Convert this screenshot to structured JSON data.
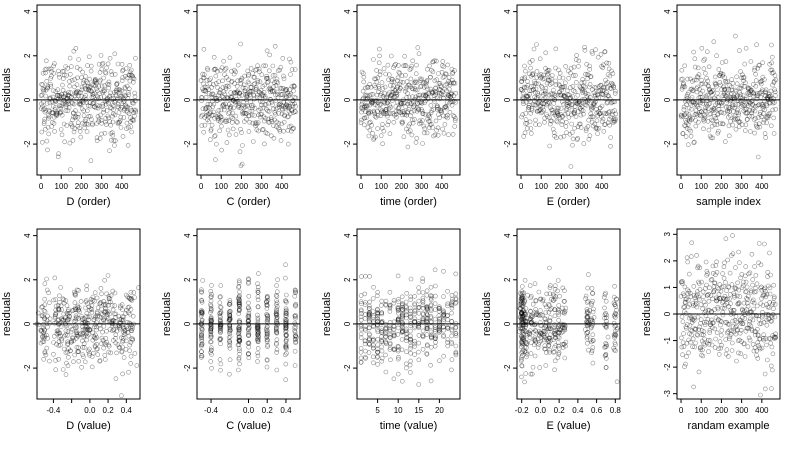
{
  "figure": {
    "layout": "2 rows x 5 columns of residual scatter plots"
  },
  "chart_data": [
    {
      "id": "d_order",
      "type": "scatter",
      "xlabel": "D (order)",
      "ylabel": "residuals",
      "xlim": [
        -20,
        490
      ],
      "ylim": [
        -3.4,
        4.3
      ],
      "xticks": [
        0,
        100,
        200,
        300,
        400
      ],
      "xtick_labels": [
        "0",
        "100",
        "200",
        "300",
        "400"
      ],
      "yticks": [
        -2,
        0,
        2,
        4
      ],
      "ytick_labels": [
        "-2",
        "0",
        "2",
        "4"
      ],
      "zero_line": 0,
      "n_points": 470,
      "pattern": "order"
    },
    {
      "id": "c_order",
      "type": "scatter",
      "xlabel": "C (order)",
      "ylabel": "residuals",
      "xlim": [
        -20,
        490
      ],
      "ylim": [
        -3.4,
        4.3
      ],
      "xticks": [
        0,
        100,
        200,
        300,
        400
      ],
      "xtick_labels": [
        "0",
        "100",
        "200",
        "300",
        "400"
      ],
      "yticks": [
        -2,
        0,
        2,
        4
      ],
      "ytick_labels": [
        "-2",
        "0",
        "2",
        "4"
      ],
      "zero_line": 0,
      "n_points": 470,
      "pattern": "order"
    },
    {
      "id": "time_order",
      "type": "scatter",
      "xlabel": "time (order)",
      "ylabel": "residuals",
      "xlim": [
        -20,
        490
      ],
      "ylim": [
        -3.4,
        4.3
      ],
      "xticks": [
        0,
        100,
        200,
        300,
        400
      ],
      "xtick_labels": [
        "0",
        "100",
        "200",
        "300",
        "400"
      ],
      "yticks": [
        -2,
        0,
        2,
        4
      ],
      "ytick_labels": [
        "-2",
        "0",
        "2",
        "4"
      ],
      "zero_line": 0,
      "n_points": 470,
      "pattern": "order"
    },
    {
      "id": "e_order",
      "type": "scatter",
      "xlabel": "E (order)",
      "ylabel": "residuals",
      "xlim": [
        -20,
        490
      ],
      "ylim": [
        -3.4,
        4.3
      ],
      "xticks": [
        0,
        100,
        200,
        300,
        400
      ],
      "xtick_labels": [
        "0",
        "100",
        "200",
        "300",
        "400"
      ],
      "yticks": [
        -2,
        0,
        2,
        4
      ],
      "ytick_labels": [
        "-2",
        "0",
        "2",
        "4"
      ],
      "zero_line": 0,
      "n_points": 470,
      "pattern": "order"
    },
    {
      "id": "sample_index",
      "type": "scatter",
      "xlabel": "sample index",
      "ylabel": "residuals",
      "xlim": [
        -20,
        490
      ],
      "ylim": [
        -3.4,
        4.3
      ],
      "xticks": [
        0,
        100,
        200,
        300,
        400
      ],
      "xtick_labels": [
        "0",
        "100",
        "200",
        "300",
        "400"
      ],
      "yticks": [
        -2,
        0,
        2,
        4
      ],
      "ytick_labels": [
        "-2",
        "0",
        "2",
        "4"
      ],
      "zero_line": 0,
      "n_points": 470,
      "pattern": "order"
    },
    {
      "id": "d_value",
      "type": "scatter",
      "xlabel": "D (value)",
      "ylabel": "residuals",
      "xlim": [
        -0.58,
        0.55
      ],
      "ylim": [
        -3.4,
        4.3
      ],
      "xticks": [
        -0.4,
        -0.2,
        0.0,
        0.2,
        0.4
      ],
      "xtick_labels": [
        "-0.4",
        "",
        "0.0",
        "0.2",
        "0.4"
      ],
      "yticks": [
        -2,
        0,
        2,
        4
      ],
      "ytick_labels": [
        "-2",
        "0",
        "2",
        "4"
      ],
      "zero_line": 0,
      "n_points": 470,
      "pattern": "value",
      "clusters": [
        -0.5,
        -0.35,
        -0.25,
        -0.15,
        -0.05,
        0.05,
        0.15,
        0.25,
        0.35,
        0.45
      ],
      "spread": 0.03
    },
    {
      "id": "c_value",
      "type": "scatter",
      "xlabel": "C (value)",
      "ylabel": "residuals",
      "xlim": [
        -0.55,
        0.55
      ],
      "ylim": [
        -3.4,
        4.3
      ],
      "xticks": [
        -0.4,
        0.0,
        0.2,
        0.4
      ],
      "xtick_labels": [
        "-0.4",
        "0.0",
        "0.2",
        "0.4"
      ],
      "yticks": [
        -2,
        0,
        2,
        4
      ],
      "ytick_labels": [
        "-2",
        "0",
        "2",
        "4"
      ],
      "zero_line": 0,
      "n_points": 470,
      "pattern": "value",
      "clusters": [
        -0.5,
        -0.4,
        -0.3,
        -0.2,
        -0.1,
        0.0,
        0.1,
        0.2,
        0.3,
        0.4,
        0.5
      ],
      "spread": 0.004
    },
    {
      "id": "time_value",
      "type": "scatter",
      "xlabel": "time (value)",
      "ylabel": "residuals",
      "xlim": [
        0,
        25
      ],
      "ylim": [
        -3.4,
        4.3
      ],
      "xticks": [
        5,
        10,
        15,
        20
      ],
      "xtick_labels": [
        "5",
        "10",
        "15",
        "20"
      ],
      "yticks": [
        -2,
        0,
        2,
        4
      ],
      "ytick_labels": [
        "-2",
        "0",
        "2",
        "4"
      ],
      "zero_line": 0,
      "n_points": 470,
      "pattern": "value",
      "clusters": [
        1,
        2,
        3,
        4,
        5,
        6,
        7,
        8,
        9,
        10,
        11,
        12,
        13,
        14,
        15,
        16,
        17,
        18,
        19,
        20,
        21,
        22,
        23,
        24
      ],
      "spread": 0.05
    },
    {
      "id": "e_value",
      "type": "scatter",
      "xlabel": "E (value)",
      "ylabel": "residuals",
      "xlim": [
        -0.25,
        0.85
      ],
      "ylim": [
        -3.4,
        4.3
      ],
      "xticks": [
        -0.2,
        0.0,
        0.2,
        0.4,
        0.6,
        0.8
      ],
      "xtick_labels": [
        "-0.2",
        "0.0",
        "0.2",
        "0.4",
        "0.6",
        "0.8"
      ],
      "yticks": [
        -2,
        0,
        2,
        4
      ],
      "ytick_labels": [
        "-2",
        "0",
        "2",
        "4"
      ],
      "zero_line": 0,
      "n_points": 470,
      "pattern": "value",
      "clusters": [
        -0.2,
        -0.2,
        -0.2,
        -0.18,
        -0.15,
        -0.1,
        -0.05,
        0.0,
        0.05,
        0.1,
        0.15,
        0.2,
        0.25,
        0.5,
        0.55,
        0.7,
        0.8
      ],
      "spread": 0.01
    },
    {
      "id": "random_example",
      "type": "scatter",
      "xlabel": "randam example",
      "ylabel": "residuals",
      "xlim": [
        -20,
        490
      ],
      "ylim": [
        -3.2,
        3.2
      ],
      "xticks": [
        0,
        100,
        200,
        300,
        400
      ],
      "xtick_labels": [
        "0",
        "100",
        "200",
        "300",
        "400"
      ],
      "yticks": [
        -3,
        -2,
        -1,
        0,
        1,
        2,
        3
      ],
      "ytick_labels": [
        "-3",
        "-2",
        "-1",
        "0",
        "1",
        "2",
        "3"
      ],
      "zero_line": 0,
      "n_points": 470,
      "pattern": "random"
    }
  ]
}
